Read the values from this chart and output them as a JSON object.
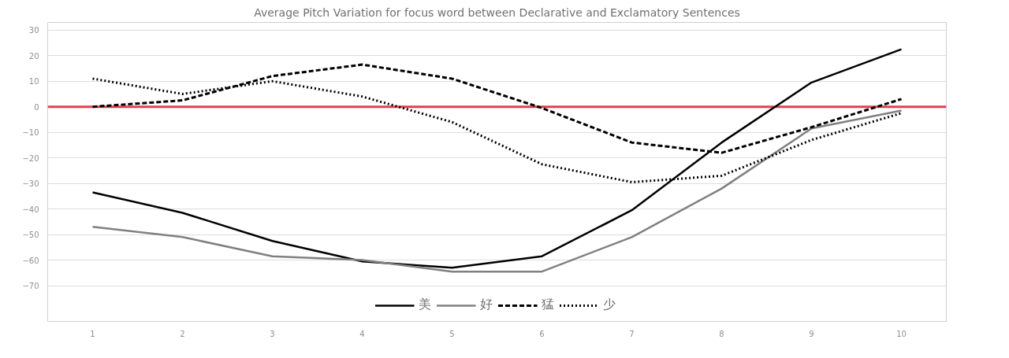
{
  "chart_data": {
    "type": "line",
    "title": "Average Pitch Variation for focus word between Declarative and Exclamatory Sentences",
    "categories": [
      "1",
      "2",
      "3",
      "4",
      "5",
      "6",
      "7",
      "8",
      "9",
      "10"
    ],
    "series": [
      {
        "name": "美",
        "color": "#000000",
        "line_style": "solid",
        "values": [
          -33.5,
          -41.5,
          -52.5,
          -60.5,
          -63,
          -58.5,
          -40.5,
          -14,
          9.5,
          22.5
        ]
      },
      {
        "name": "好",
        "color": "#808080",
        "line_style": "solid",
        "values": [
          -47,
          -51,
          -58.5,
          -60,
          -64.5,
          -64.5,
          -51,
          -32,
          -8.5,
          -1.5
        ]
      },
      {
        "name": "猛",
        "color": "#000000",
        "line_style": "dashed",
        "values": [
          0,
          2.5,
          12,
          16.5,
          11,
          -0.5,
          -14,
          -18,
          -8,
          3
        ]
      },
      {
        "name": "少",
        "color": "#000000",
        "line_style": "dotted",
        "values": [
          11,
          5,
          10,
          4,
          -6,
          -22.5,
          -29.5,
          -27,
          -13,
          -2.5
        ]
      }
    ],
    "ylim": [
      -84,
      33
    ],
    "yticks": [
      -70,
      -60,
      -50,
      -40,
      -30,
      -20,
      -10,
      0,
      10,
      20,
      30
    ],
    "grid": "y",
    "legend": "bottom",
    "marker": "none",
    "ref_lines": [
      {
        "axis": "y",
        "value": 0,
        "color": "#e04050"
      }
    ]
  }
}
